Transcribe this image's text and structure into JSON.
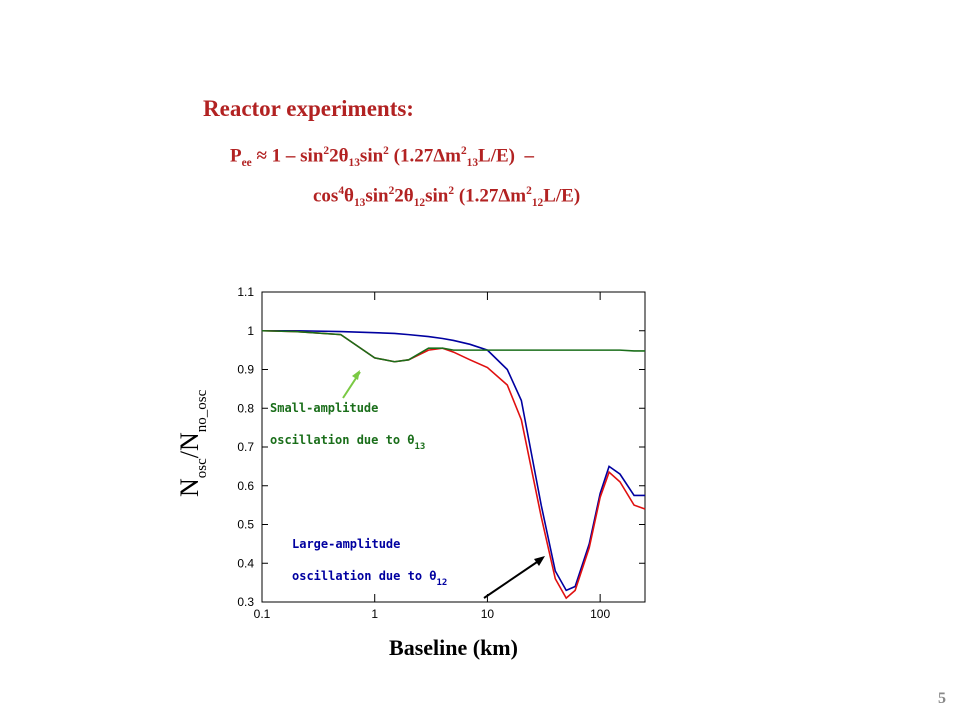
{
  "slide": {
    "heading": "Reactor experiments:",
    "formula_lines": [
      [
        {
          "t": "P",
          "s": "n"
        },
        {
          "t": "ee",
          "s": "sub"
        },
        {
          "t": " ≈ 1 – sin",
          "s": "n"
        },
        {
          "t": "2",
          "s": "sup"
        },
        {
          "t": "2θ",
          "s": "n"
        },
        {
          "t": "13",
          "s": "sub"
        },
        {
          "t": "sin",
          "s": "n"
        },
        {
          "t": "2",
          "s": "sup"
        },
        {
          "t": " (1.27Δm",
          "s": "n"
        },
        {
          "t": "2",
          "s": "sup"
        },
        {
          "t": "13",
          "s": "sub"
        },
        {
          "t": "L/E)  –",
          "s": "n"
        }
      ],
      [
        {
          "t": "cos",
          "s": "n"
        },
        {
          "t": "4",
          "s": "sup"
        },
        {
          "t": "θ",
          "s": "n"
        },
        {
          "t": "13",
          "s": "sub"
        },
        {
          "t": "sin",
          "s": "n"
        },
        {
          "t": "2",
          "s": "sup"
        },
        {
          "t": "2θ",
          "s": "n"
        },
        {
          "t": "12",
          "s": "sub"
        },
        {
          "t": "sin",
          "s": "n"
        },
        {
          "t": "2",
          "s": "sup"
        },
        {
          "t": " (1.27Δm",
          "s": "n"
        },
        {
          "t": "2",
          "s": "sup"
        },
        {
          "t": "12",
          "s": "sub"
        },
        {
          "t": "L/E)",
          "s": "n"
        }
      ]
    ],
    "page_number": "5"
  },
  "chart_data": {
    "type": "line",
    "x_label": "Baseline (km)",
    "y_label": [
      {
        "t": "N",
        "s": "n"
      },
      {
        "t": "osc",
        "s": "sub"
      },
      {
        "t": "/N",
        "s": "n"
      },
      {
        "t": "no_osc",
        "s": "sub"
      }
    ],
    "x": [
      0.1,
      0.2,
      0.5,
      1,
      1.5,
      2,
      3,
      4,
      5,
      7,
      10,
      15,
      20,
      30,
      40,
      50,
      60,
      80,
      100,
      120,
      150,
      200,
      250
    ],
    "series": [
      {
        "name": "blue",
        "color": "#0000a0",
        "values": [
          1.0,
          1.0,
          0.998,
          0.995,
          0.993,
          0.99,
          0.985,
          0.98,
          0.975,
          0.965,
          0.95,
          0.9,
          0.82,
          0.55,
          0.38,
          0.33,
          0.34,
          0.45,
          0.58,
          0.65,
          0.63,
          0.575,
          0.575
        ]
      },
      {
        "name": "red",
        "color": "#e01010",
        "values": [
          1.0,
          0.998,
          0.99,
          0.93,
          0.92,
          0.925,
          0.95,
          0.955,
          0.945,
          0.925,
          0.905,
          0.86,
          0.77,
          0.52,
          0.36,
          0.31,
          0.33,
          0.44,
          0.57,
          0.635,
          0.61,
          0.55,
          0.54
        ]
      },
      {
        "name": "green",
        "color": "#1a6e1a",
        "values": [
          1.0,
          0.998,
          0.99,
          0.93,
          0.92,
          0.925,
          0.955,
          0.955,
          0.95,
          0.95,
          0.95,
          0.95,
          0.95,
          0.95,
          0.95,
          0.95,
          0.95,
          0.95,
          0.95,
          0.95,
          0.95,
          0.948,
          0.948
        ]
      }
    ],
    "xscale": "log",
    "xlim": [
      0.1,
      250
    ],
    "xticks": [
      0.1,
      1,
      10,
      100
    ],
    "ylim": [
      0.3,
      1.1
    ],
    "yticks": [
      0.3,
      0.4,
      0.5,
      0.6,
      0.7,
      0.8,
      0.9,
      1,
      1.1
    ],
    "annotations": [
      {
        "lines": [
          [
            {
              "t": "Small-amplitude",
              "s": "n"
            }
          ],
          [
            {
              "t": "oscillation due to θ",
              "s": "n"
            },
            {
              "t": "13",
              "s": "sub"
            }
          ]
        ],
        "color": "#1a6e1a"
      },
      {
        "lines": [
          [
            {
              "t": "Large-amplitude",
              "s": "n"
            }
          ],
          [
            {
              "t": "oscillation due to θ",
              "s": "n"
            },
            {
              "t": "12",
              "s": "sub"
            }
          ]
        ],
        "color": "#0000a0"
      }
    ]
  }
}
